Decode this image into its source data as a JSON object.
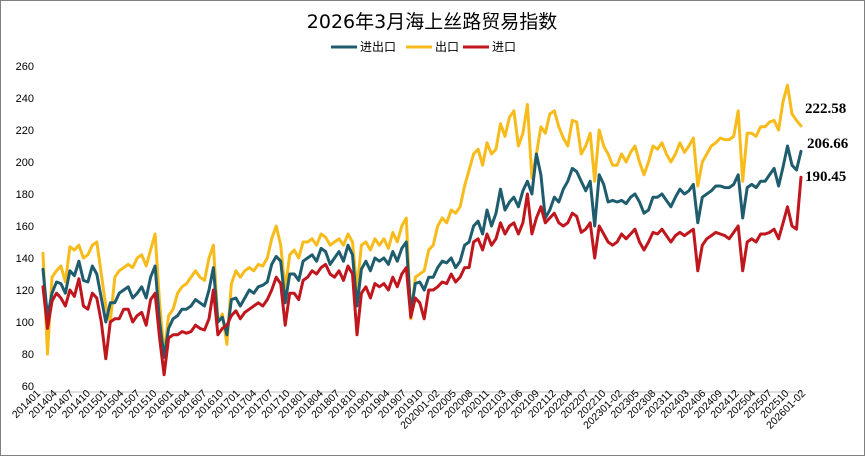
{
  "chart_data": {
    "type": "line",
    "title": "2026年3月海上丝路贸易指数",
    "ylim": [
      60,
      260
    ],
    "yticks": [
      60,
      80,
      100,
      120,
      140,
      160,
      180,
      200,
      220,
      240,
      260
    ],
    "grid": false,
    "legend": "top-center",
    "x_tick_labels": [
      "201401",
      "201404",
      "201407",
      "201410",
      "201501",
      "201504",
      "201507",
      "201510",
      "201601",
      "201604",
      "201607",
      "201610",
      "201701",
      "201704",
      "201707",
      "201710",
      "201801",
      "201804",
      "201807",
      "201810",
      "201901",
      "201904",
      "201907",
      "201910",
      "202001-02",
      "202005",
      "202008",
      "202011",
      "202103",
      "202106",
      "202109",
      "202112",
      "202204",
      "202207",
      "202210",
      "202301-02",
      "202305",
      "202308",
      "202311",
      "202403",
      "202406",
      "202409",
      "202412",
      "202504",
      "202507",
      "202510",
      "202601-02"
    ],
    "series": [
      {
        "name": "进出口",
        "color": "#1f5d6e",
        "end_label": "206.66",
        "values": [
          133,
          103,
          118,
          125,
          124,
          118,
          132,
          129,
          138,
          126,
          125,
          135,
          130,
          115,
          100,
          112,
          112,
          118,
          120,
          122,
          115,
          118,
          122,
          115,
          128,
          135,
          100,
          78,
          96,
          102,
          104,
          108,
          108,
          110,
          114,
          112,
          110,
          120,
          134,
          100,
          103,
          92,
          114,
          115,
          110,
          115,
          120,
          118,
          122,
          123,
          125,
          136,
          141,
          138,
          112,
          130,
          130,
          126,
          138,
          140,
          142,
          138,
          146,
          144,
          136,
          140,
          144,
          138,
          148,
          142,
          110,
          133,
          138,
          132,
          140,
          138,
          140,
          136,
          144,
          138,
          146,
          150,
          106,
          124,
          125,
          120,
          128,
          128,
          134,
          138,
          137,
          140,
          134,
          138,
          148,
          150,
          160,
          163,
          155,
          170,
          160,
          168,
          183,
          170,
          175,
          178,
          172,
          182,
          188,
          180,
          205,
          192,
          165,
          170,
          178,
          175,
          183,
          188,
          196,
          194,
          188,
          182,
          188,
          160,
          192,
          186,
          175,
          176,
          175,
          176,
          174,
          178,
          180,
          175,
          168,
          170,
          178,
          178,
          180,
          176,
          172,
          178,
          183,
          180,
          182,
          186,
          162,
          178,
          180,
          182,
          185,
          185,
          184,
          184,
          186,
          192,
          165,
          184,
          186,
          184,
          188,
          188,
          192,
          196,
          185,
          197,
          210,
          198,
          195,
          206.66
        ],
        "rendered_values": null
      },
      {
        "name": "出口",
        "color": "#f7bc1c",
        "end_label": "222.58",
        "values": [
          143,
          80,
          128,
          132,
          135,
          125,
          147,
          145,
          148,
          140,
          142,
          148,
          150,
          130,
          110,
          100,
          128,
          132,
          134,
          136,
          134,
          140,
          142,
          135,
          145,
          155,
          112,
          80,
          104,
          108,
          118,
          122,
          124,
          128,
          132,
          128,
          126,
          140,
          148,
          100,
          105,
          86,
          124,
          132,
          128,
          132,
          134,
          132,
          136,
          135,
          140,
          152,
          160,
          148,
          120,
          142,
          145,
          140,
          150,
          150,
          152,
          148,
          155,
          153,
          148,
          150,
          152,
          148,
          155,
          150,
          120,
          148,
          150,
          145,
          152,
          148,
          152,
          146,
          156,
          150,
          160,
          165,
          102,
          128,
          130,
          132,
          145,
          148,
          160,
          165,
          162,
          170,
          168,
          172,
          185,
          195,
          205,
          208,
          198,
          212,
          205,
          208,
          224,
          216,
          228,
          232,
          210,
          218,
          236,
          190,
          205,
          222,
          218,
          230,
          232,
          222,
          215,
          210,
          226,
          225,
          205,
          210,
          218,
          188,
          220,
          210,
          205,
          198,
          198,
          205,
          200,
          206,
          210,
          200,
          192,
          200,
          210,
          208,
          212,
          205,
          200,
          205,
          212,
          206,
          210,
          215,
          185,
          200,
          205,
          210,
          212,
          215,
          214,
          214,
          216,
          232,
          188,
          218,
          218,
          216,
          222,
          222,
          225,
          226,
          220,
          238,
          248,
          230,
          226,
          222.58
        ]
      },
      {
        "name": "进口",
        "color": "#c0161d",
        "end_label": "190.45",
        "values": [
          122,
          96,
          113,
          118,
          115,
          110,
          120,
          116,
          127,
          110,
          108,
          118,
          115,
          100,
          77,
          100,
          102,
          102,
          108,
          108,
          100,
          104,
          106,
          98,
          114,
          118,
          90,
          67,
          90,
          92,
          92,
          94,
          93,
          94,
          98,
          96,
          95,
          102,
          120,
          92,
          96,
          98,
          104,
          107,
          102,
          106,
          108,
          110,
          112,
          110,
          114,
          120,
          128,
          124,
          98,
          118,
          118,
          114,
          126,
          128,
          132,
          130,
          134,
          136,
          130,
          128,
          132,
          126,
          135,
          130,
          92,
          118,
          122,
          115,
          124,
          122,
          124,
          120,
          128,
          122,
          130,
          134,
          103,
          115,
          112,
          102,
          120,
          120,
          122,
          125,
          124,
          130,
          125,
          128,
          134,
          134,
          150,
          152,
          145,
          155,
          148,
          152,
          162,
          155,
          160,
          162,
          155,
          162,
          180,
          155,
          165,
          172,
          162,
          165,
          168,
          162,
          160,
          162,
          168,
          166,
          156,
          158,
          162,
          140,
          160,
          155,
          150,
          148,
          150,
          155,
          152,
          155,
          158,
          150,
          145,
          150,
          156,
          155,
          158,
          154,
          150,
          154,
          156,
          154,
          156,
          158,
          132,
          148,
          152,
          154,
          156,
          155,
          154,
          152,
          156,
          160,
          132,
          150,
          152,
          150,
          155,
          155,
          156,
          158,
          152,
          162,
          172,
          160,
          158,
          190.45
        ]
      }
    ]
  }
}
